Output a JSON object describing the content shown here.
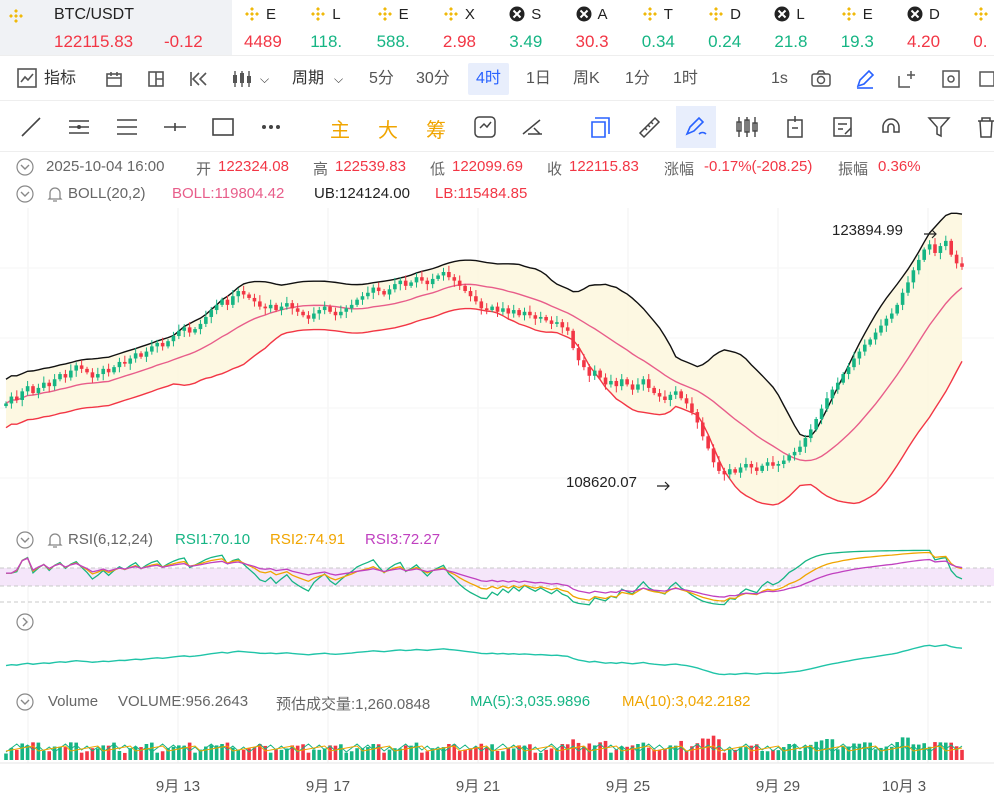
{
  "symbol": "BTC/USDT",
  "price": "122115.83",
  "change": "-0.12",
  "tickers": [
    {
      "name": "E",
      "price": "4489",
      "color": "#f23645",
      "icon": "binance-icon"
    },
    {
      "name": "L",
      "price": "118.",
      "color": "#16b584",
      "icon": "binance-icon"
    },
    {
      "name": "E",
      "price": "588.",
      "color": "#16b584",
      "icon": "binance-icon"
    },
    {
      "name": "X",
      "price": "2.98",
      "color": "#f23645",
      "icon": "binance-icon"
    },
    {
      "name": "S",
      "price": "3.49",
      "color": "#16b584",
      "icon": "x-icon"
    },
    {
      "name": "A",
      "price": "30.3",
      "color": "#f23645",
      "icon": "x-icon"
    },
    {
      "name": "T",
      "price": "0.34",
      "color": "#16b584",
      "icon": "binance-icon"
    },
    {
      "name": "D",
      "price": "0.24",
      "color": "#16b584",
      "icon": "binance-icon"
    },
    {
      "name": "L",
      "price": "21.8",
      "color": "#16b584",
      "icon": "x-icon"
    },
    {
      "name": "E",
      "price": "19.3",
      "color": "#16b584",
      "icon": "binance-icon"
    },
    {
      "name": "D",
      "price": "4.20",
      "color": "#f23645",
      "icon": "x-icon"
    },
    {
      "name": "",
      "price": "0.",
      "color": "#f23645",
      "icon": "binance-icon"
    }
  ],
  "toolbar": {
    "indicators": "指标",
    "period": "周期",
    "intervals": [
      "5分",
      "30分",
      "4时",
      "1日",
      "周K",
      "1分",
      "1时"
    ],
    "selected_interval": "4时",
    "interval_1s": "1s"
  },
  "chips": [
    "主",
    "大",
    "筹"
  ],
  "ohlc": {
    "date": "2025-10-04 16:00",
    "open_label": "开",
    "open": "122324.08",
    "high_label": "高",
    "high": "122539.83",
    "low_label": "低",
    "low": "122099.69",
    "close_label": "收",
    "close": "122115.83",
    "chg_label": "涨幅",
    "chg": "-0.17%(-208.25)",
    "amp_label": "振幅",
    "amp": "0.36%"
  },
  "boll": {
    "title": "BOLL(20,2)",
    "boll": "BOLL:119804.42",
    "ub": "UB:124124.00",
    "lb": "LB:115484.85"
  },
  "rsi": {
    "title": "RSI(6,12,24)",
    "rsi1": "RSI1:70.10",
    "rsi2": "RSI2:74.91",
    "rsi3": "RSI3:72.27"
  },
  "volume": {
    "title": "Volume",
    "vol": "VOLUME:956.2643",
    "est": "预估成交量:1,260.0848",
    "ma5": "MA(5):3,035.9896",
    "ma10": "MA(10):3,042.2182"
  },
  "colors": {
    "up": "#16b584",
    "down": "#f23645",
    "accent": "#2962ff",
    "ub": "#111111",
    "mid": "#e85d8a",
    "lb": "#f23645",
    "rsi1": "#16b584",
    "rsi2": "#f0a500",
    "rsi3": "#c040c0"
  },
  "chart_data": {
    "type": "candlestick",
    "x_tick_labels": [
      "9月 13",
      "9月 17",
      "9月 21",
      "9月 25",
      "9月 29",
      "10月 3"
    ],
    "annotations": [
      {
        "label": "123894.99",
        "kind": "high"
      },
      {
        "label": "108620.07",
        "kind": "low"
      }
    ],
    "price_range": [
      107000,
      125500
    ],
    "closes": [
      114200,
      114600,
      114400,
      114900,
      115200,
      114800,
      115100,
      115400,
      115200,
      115600,
      115900,
      115700,
      116100,
      116400,
      116200,
      116000,
      115700,
      115900,
      116200,
      116000,
      116300,
      116600,
      116500,
      116800,
      117100,
      116900,
      117200,
      117500,
      117700,
      117500,
      117800,
      118100,
      118400,
      118600,
      118300,
      118500,
      118800,
      119200,
      119600,
      119900,
      120200,
      119900,
      120400,
      120700,
      120500,
      120300,
      120100,
      119800,
      119700,
      119900,
      119600,
      119800,
      120000,
      119700,
      119500,
      119300,
      119100,
      119400,
      119600,
      119800,
      119500,
      119300,
      119500,
      119700,
      119900,
      120200,
      120400,
      120600,
      120900,
      120700,
      120500,
      120800,
      121100,
      121300,
      121000,
      121200,
      121500,
      121300,
      121100,
      121400,
      121600,
      121800,
      121500,
      121300,
      121000,
      120700,
      120400,
      120100,
      119700,
      119600,
      119800,
      119500,
      119700,
      119400,
      119600,
      119300,
      119500,
      119300,
      119100,
      119200,
      119000,
      118800,
      118900,
      118600,
      118400,
      117400,
      116700,
      116300,
      115800,
      116100,
      115700,
      115300,
      115500,
      115200,
      115600,
      115300,
      115000,
      115300,
      115600,
      115100,
      114800,
      114600,
      114400,
      114700,
      114900,
      114500,
      114200,
      113700,
      113100,
      112300,
      111600,
      110800,
      110300,
      110100,
      110400,
      110200,
      110500,
      110700,
      110500,
      110300,
      110600,
      110800,
      110600,
      110700,
      110900,
      111200,
      111400,
      111700,
      112200,
      112700,
      113300,
      113900,
      114500,
      115000,
      115400,
      115900,
      116300,
      116800,
      117200,
      117600,
      117900,
      118300,
      118700,
      119100,
      119400,
      119900,
      120600,
      121200,
      121900,
      122500,
      123100,
      123400,
      122900,
      123300,
      123600,
      122800,
      122300,
      122100
    ],
    "series": [
      {
        "name": "UB",
        "values": []
      },
      {
        "name": "BOLL",
        "values": []
      },
      {
        "name": "LB",
        "values": []
      },
      {
        "name": "RSI1",
        "values": []
      },
      {
        "name": "RSI2",
        "values": []
      },
      {
        "name": "RSI3",
        "values": []
      }
    ]
  }
}
